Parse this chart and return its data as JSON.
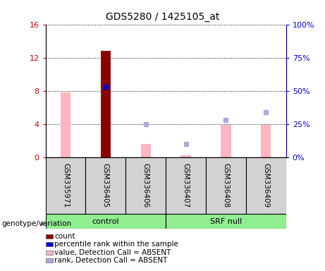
{
  "title": "GDS5280 / 1425105_at",
  "samples": [
    "GSM335971",
    "GSM336405",
    "GSM336406",
    "GSM336407",
    "GSM336408",
    "GSM336409"
  ],
  "count_values": [
    0,
    12.8,
    0,
    0,
    0,
    0
  ],
  "count_color": "#8B0000",
  "percentile_rank_values": [
    null,
    53.0,
    null,
    null,
    null,
    null
  ],
  "percentile_rank_color": "#0000CC",
  "value_absent_values": [
    7.8,
    null,
    1.6,
    0.2,
    3.9,
    3.9
  ],
  "value_absent_color": "#FFB6C1",
  "rank_absent_values": [
    null,
    null,
    25.0,
    10.0,
    28.0,
    34.0
  ],
  "rank_absent_color": "#AAAADD",
  "ylim_left": [
    0,
    16
  ],
  "ylim_right": [
    0,
    100
  ],
  "yticks_left": [
    0,
    4,
    8,
    12,
    16
  ],
  "yticks_right": [
    0,
    25,
    50,
    75,
    100
  ],
  "ytick_labels_left": [
    "0",
    "4",
    "8",
    "12",
    "16"
  ],
  "ytick_labels_right": [
    "0%",
    "25%",
    "50%",
    "75%",
    "100%"
  ],
  "left_axis_color": "#CC0000",
  "right_axis_color": "#0000CC",
  "legend_items": [
    {
      "label": "count",
      "color": "#8B0000"
    },
    {
      "label": "percentile rank within the sample",
      "color": "#0000CC"
    },
    {
      "label": "value, Detection Call = ABSENT",
      "color": "#FFB6C1"
    },
    {
      "label": "rank, Detection Call = ABSENT",
      "color": "#AAAADD"
    }
  ],
  "genotype_label": "genotype/variation",
  "group_label_control": "control",
  "group_label_srf": "SRF null",
  "group_color": "#90EE90",
  "sample_box_color": "#D3D3D3",
  "bar_width": 0.25
}
